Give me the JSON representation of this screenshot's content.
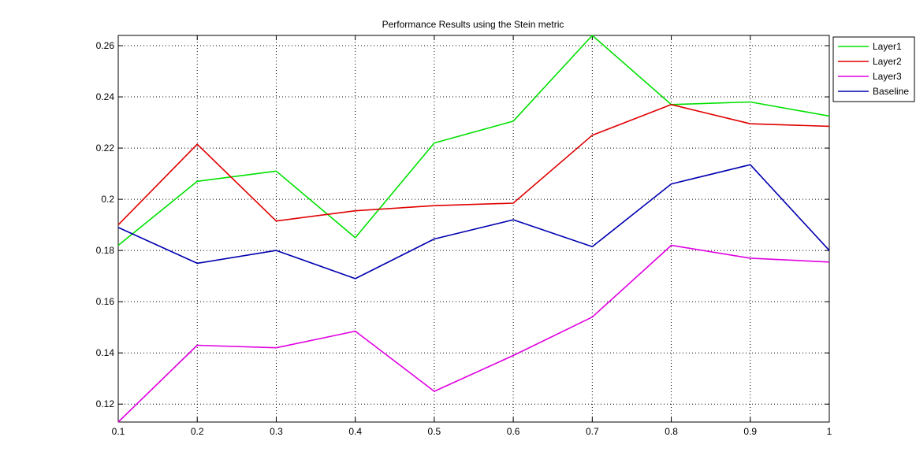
{
  "chart_data": {
    "type": "line",
    "title": "Performance Results using the Stein metric",
    "xlabel": "",
    "ylabel": "",
    "x": [
      0.1,
      0.2,
      0.3,
      0.4,
      0.5,
      0.6,
      0.7,
      0.8,
      0.9,
      1.0
    ],
    "xlim": [
      0.1,
      1.0
    ],
    "ylim": [
      0.113,
      0.264
    ],
    "xticks": [
      0.1,
      0.2,
      0.3,
      0.4,
      0.5,
      0.6,
      0.7,
      0.8,
      0.9,
      1.0
    ],
    "xtick_labels": [
      "0.1",
      "0.2",
      "0.3",
      "0.4",
      "0.5",
      "0.6",
      "0.7",
      "0.8",
      "0.9",
      "1"
    ],
    "yticks": [
      0.12,
      0.14,
      0.16,
      0.18,
      0.2,
      0.22,
      0.24,
      0.26
    ],
    "ytick_labels": [
      "0.12",
      "0.14",
      "0.16",
      "0.18",
      "0.2",
      "0.22",
      "0.24",
      "0.26"
    ],
    "grid": true,
    "legend_position": "top-right",
    "series": [
      {
        "name": "Layer1",
        "color": "#00e000",
        "values": [
          0.182,
          0.207,
          0.211,
          0.185,
          0.222,
          0.2305,
          0.264,
          0.237,
          0.238,
          0.2325
        ]
      },
      {
        "name": "Layer2",
        "color": "#e00000",
        "values": [
          0.19,
          0.2215,
          0.1915,
          0.1955,
          0.1975,
          0.1985,
          0.225,
          0.237,
          0.2295,
          0.2285
        ]
      },
      {
        "name": "Layer3",
        "color": "#e000e0",
        "values": [
          0.113,
          0.143,
          0.142,
          0.1485,
          0.125,
          0.139,
          0.154,
          0.182,
          0.177,
          0.1755
        ]
      },
      {
        "name": "Baseline",
        "color": "#0000b0",
        "values": [
          0.189,
          0.175,
          0.18,
          0.169,
          0.1845,
          0.192,
          0.1815,
          0.206,
          0.2135,
          0.18
        ]
      }
    ]
  }
}
